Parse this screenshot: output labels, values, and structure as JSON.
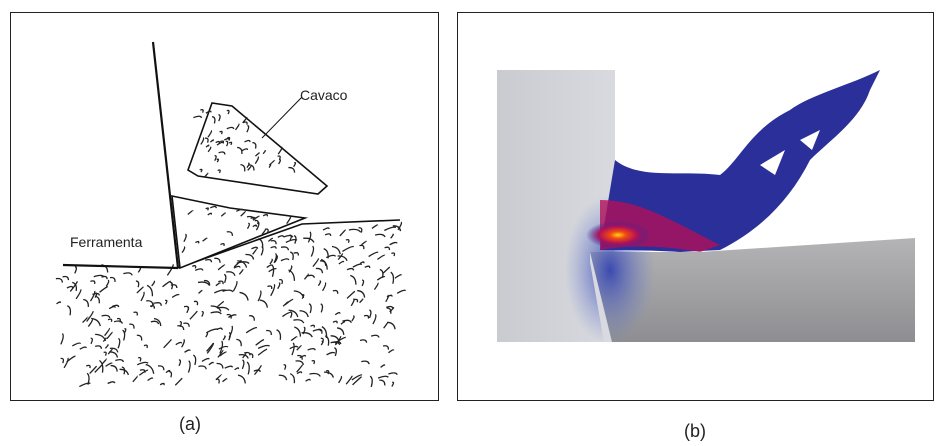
{
  "panels": [
    {
      "label": "(a)",
      "annotations": {
        "chip": "Cavaco",
        "tool": "Ferramenta"
      }
    },
    {
      "label": "(b)"
    }
  ]
}
